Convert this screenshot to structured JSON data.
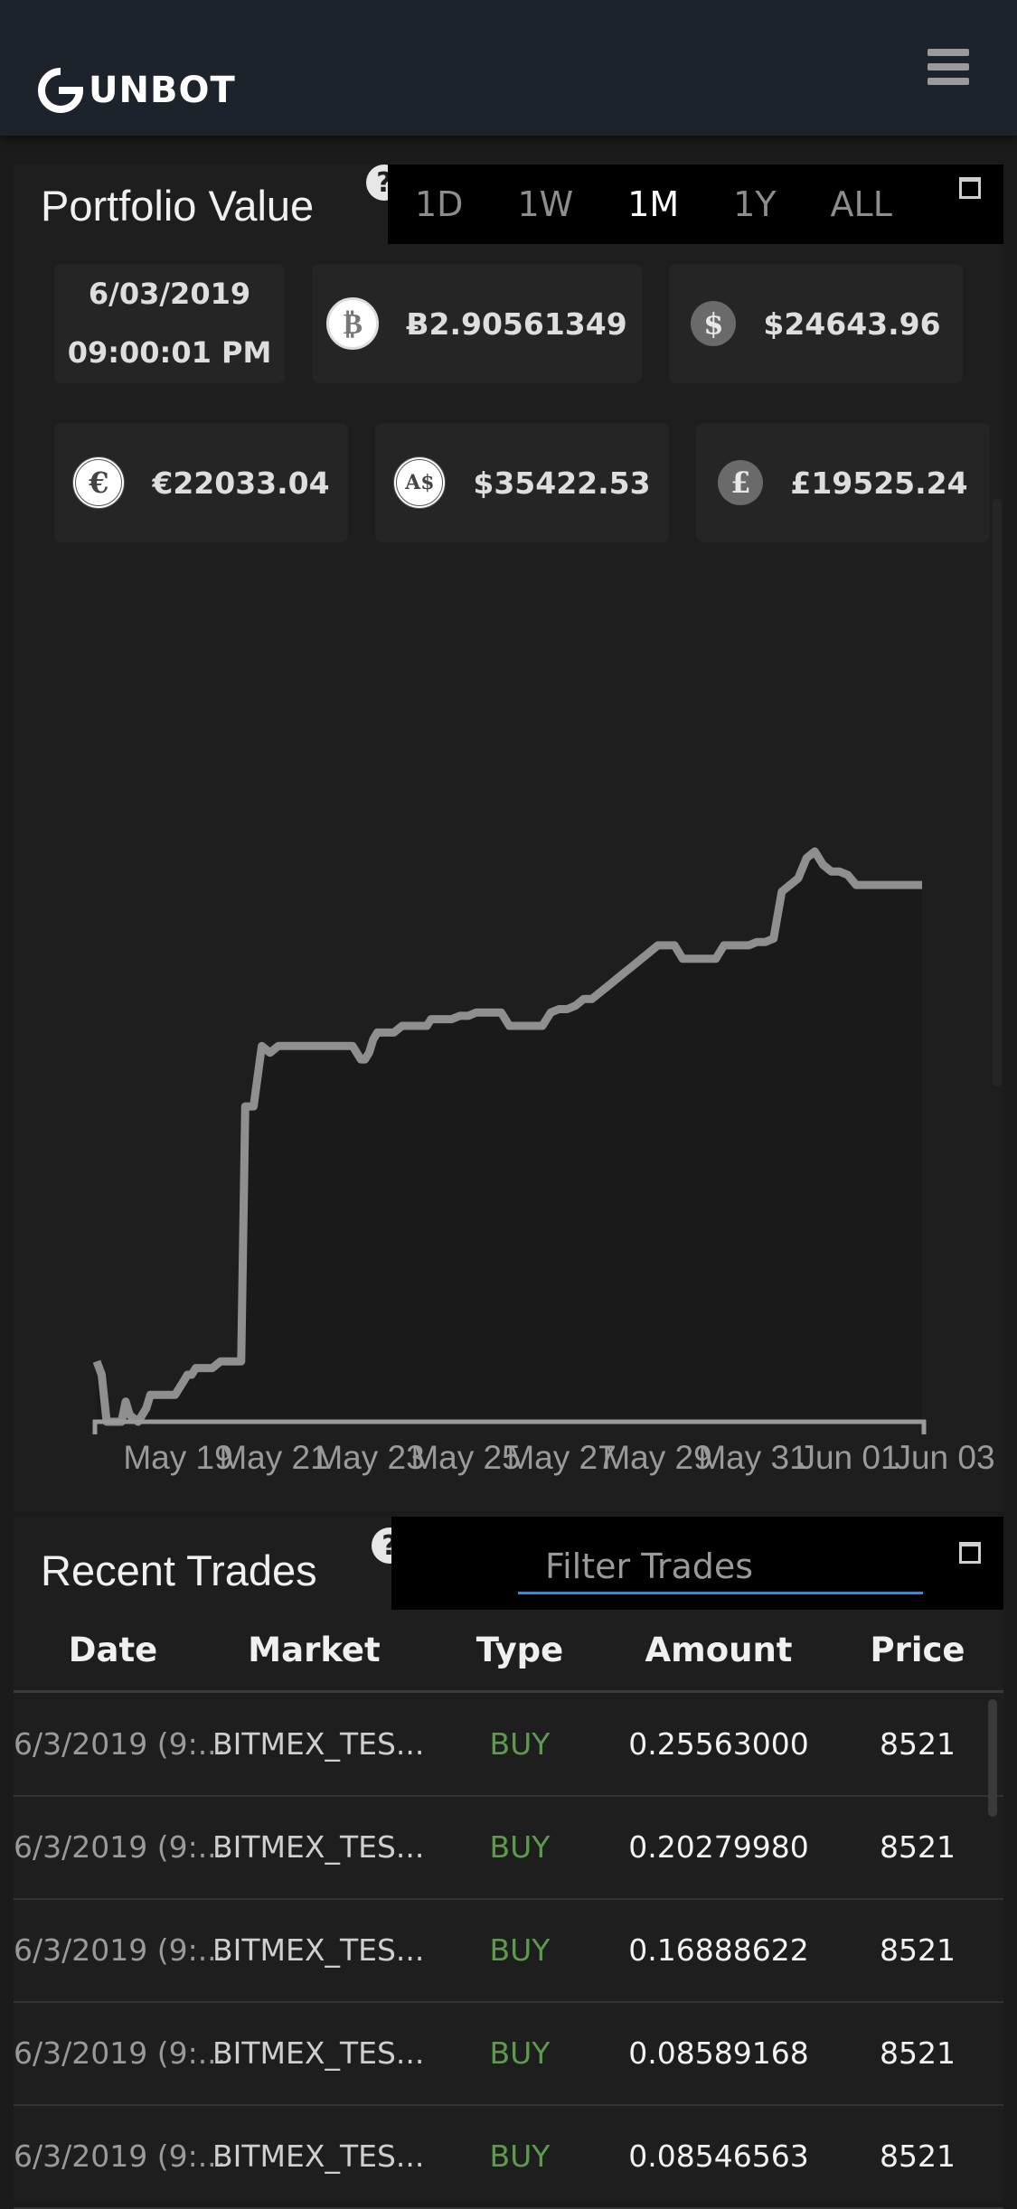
{
  "header": {
    "logo_text": "UNBOT",
    "menu_icon": "hamburger-icon"
  },
  "portfolio": {
    "title": "Portfolio Value",
    "help_icon": "question-icon",
    "help_glyph": "?",
    "ranges": [
      {
        "label": "1D",
        "active": false
      },
      {
        "label": "1W",
        "active": false
      },
      {
        "label": "1M",
        "active": true
      },
      {
        "label": "1Y",
        "active": false
      },
      {
        "label": "ALL",
        "active": false
      }
    ],
    "date": "6/03/2019",
    "time": "09:00:01 PM",
    "values": {
      "btc": {
        "icon": "bitcoin-icon",
        "glyph": "₿",
        "text": "Ƀ2.90561349"
      },
      "usd": {
        "icon": "dollar-icon",
        "glyph": "$",
        "text": "$24643.96"
      },
      "eur": {
        "icon": "euro-icon",
        "glyph": "€",
        "text": "€22033.04"
      },
      "aud": {
        "icon": "aud-icon",
        "glyph": "A$",
        "text": "$35422.53"
      },
      "gbp": {
        "icon": "pound-icon",
        "glyph": "£",
        "text": "£19525.24"
      }
    }
  },
  "chart_data": {
    "type": "area",
    "title": "",
    "xlabel": "",
    "ylabel": "",
    "x_tick_labels": [
      "May 19",
      "May 21",
      "May 23",
      "May 25",
      "May 27",
      "May 29",
      "May 31",
      "Jun 01",
      "Jun 03"
    ],
    "grid": false,
    "line_color": "#8f8f8f",
    "fill_color": "#1a1a1a",
    "x": [
      0,
      0.6,
      1.2,
      2,
      3,
      3.5,
      4,
      5,
      6,
      6.5,
      7,
      7.5,
      8,
      9,
      9.5,
      10,
      10.5,
      11,
      11.5,
      12,
      13,
      14,
      15,
      15.5,
      16,
      17,
      17.5,
      18,
      19,
      20,
      21,
      22,
      23,
      24,
      25,
      26,
      27,
      28,
      29,
      30,
      31,
      32,
      32.5,
      33,
      33.5,
      34,
      35,
      36,
      37,
      38,
      39,
      40,
      40.5,
      41,
      42,
      43,
      44,
      45,
      46,
      47,
      48,
      49,
      50,
      51,
      52,
      53,
      54,
      55,
      56,
      57,
      58,
      59,
      60,
      61,
      62,
      63,
      64,
      65,
      66,
      67,
      68,
      69,
      70,
      71,
      72,
      73,
      74,
      75,
      76,
      77,
      78,
      79,
      80,
      81,
      82,
      83,
      84,
      85,
      86,
      87,
      88,
      89,
      90,
      91,
      92,
      93,
      94,
      95,
      96,
      97,
      98,
      99,
      100
    ],
    "values": [
      2.1,
      1.9,
      1.2,
      1.2,
      1.2,
      1.5,
      1.3,
      1.2,
      1.4,
      1.6,
      1.6,
      1.6,
      1.6,
      1.6,
      1.6,
      1.7,
      1.8,
      1.9,
      1.9,
      2.0,
      2.0,
      2.0,
      2.1,
      2.1,
      2.1,
      2.1,
      2.1,
      5.9,
      5.9,
      6.8,
      6.7,
      6.8,
      6.8,
      6.8,
      6.8,
      6.8,
      6.8,
      6.8,
      6.8,
      6.8,
      6.8,
      6.6,
      6.6,
      6.7,
      6.9,
      7.0,
      7.0,
      7.0,
      7.1,
      7.1,
      7.1,
      7.1,
      7.2,
      7.2,
      7.2,
      7.2,
      7.25,
      7.25,
      7.3,
      7.3,
      7.3,
      7.3,
      7.1,
      7.1,
      7.1,
      7.1,
      7.1,
      7.3,
      7.35,
      7.35,
      7.4,
      7.5,
      7.5,
      7.6,
      7.7,
      7.8,
      7.9,
      8.0,
      8.1,
      8.2,
      8.3,
      8.3,
      8.3,
      8.1,
      8.1,
      8.1,
      8.1,
      8.1,
      8.3,
      8.3,
      8.3,
      8.3,
      8.35,
      8.35,
      8.4,
      9.1,
      9.2,
      9.3,
      9.6,
      9.7,
      9.5,
      9.4,
      9.4,
      9.35,
      9.2,
      9.2,
      9.2,
      9.2,
      9.2,
      9.2,
      9.2,
      9.2,
      9.2
    ],
    "values_note_unused": ""
  },
  "trades": {
    "title": "Recent Trades",
    "help_icon": "question-icon",
    "help_glyph": "?",
    "filter_placeholder": "Filter Trades",
    "columns": [
      "Date",
      "Market",
      "Type",
      "Amount",
      "Price"
    ],
    "rows": [
      {
        "date": "6/3/2019 (9:...",
        "market": "BITMEX_TES...",
        "type": "BUY",
        "amount": "0.25563000",
        "price": "8521"
      },
      {
        "date": "6/3/2019 (9:...",
        "market": "BITMEX_TES...",
        "type": "BUY",
        "amount": "0.20279980",
        "price": "8521"
      },
      {
        "date": "6/3/2019 (9:...",
        "market": "BITMEX_TES...",
        "type": "BUY",
        "amount": "0.16888622",
        "price": "8521"
      },
      {
        "date": "6/3/2019 (9:...",
        "market": "BITMEX_TES...",
        "type": "BUY",
        "amount": "0.08589168",
        "price": "8521"
      },
      {
        "date": "6/3/2019 (9:...",
        "market": "BITMEX_TES...",
        "type": "BUY",
        "amount": "0.08546563",
        "price": "8521"
      }
    ]
  }
}
